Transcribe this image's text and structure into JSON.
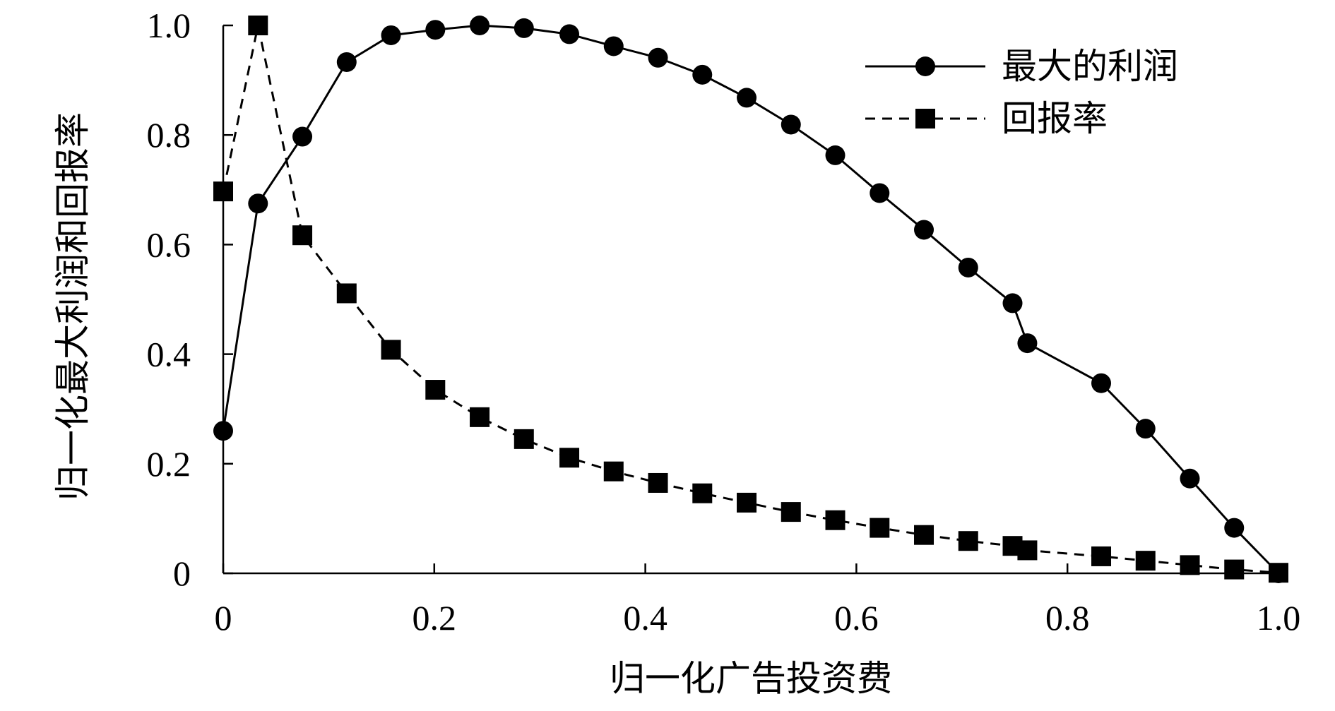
{
  "chart_data": {
    "type": "line",
    "xlabel": "归一化广告投资费",
    "ylabel": "归一化最大利润和回报率",
    "xlim": [
      0,
      1.0
    ],
    "ylim": [
      0,
      1.0
    ],
    "x_ticks": [
      "0",
      "0.2",
      "0.4",
      "0.6",
      "0.8",
      "1.0"
    ],
    "y_ticks": [
      "0",
      "0.2",
      "0.4",
      "0.6",
      "0.8",
      "1.0"
    ],
    "legend_position": "top-right",
    "series": [
      {
        "name": "最大的利润",
        "marker": "circle",
        "line_style": "solid",
        "color": "#000000",
        "x": [
          0,
          0.033,
          0.075,
          0.117,
          0.159,
          0.201,
          0.243,
          0.285,
          0.328,
          0.37,
          0.412,
          0.454,
          0.496,
          0.538,
          0.58,
          0.622,
          0.664,
          0.706,
          0.748,
          0.762,
          0.832,
          0.874,
          0.916,
          0.958,
          1.0
        ],
        "y": [
          0.26,
          0.675,
          0.797,
          0.933,
          0.982,
          0.992,
          1.0,
          0.995,
          0.984,
          0.962,
          0.941,
          0.91,
          0.868,
          0.819,
          0.763,
          0.694,
          0.627,
          0.558,
          0.493,
          0.42,
          0.347,
          0.264,
          0.173,
          0.083,
          0.0
        ]
      },
      {
        "name": "回报率",
        "marker": "square",
        "line_style": "dashed",
        "color": "#000000",
        "x": [
          0,
          0.033,
          0.075,
          0.117,
          0.159,
          0.201,
          0.243,
          0.285,
          0.328,
          0.37,
          0.412,
          0.454,
          0.496,
          0.538,
          0.58,
          0.622,
          0.664,
          0.706,
          0.748,
          0.762,
          0.832,
          0.874,
          0.916,
          0.958,
          1.0
        ],
        "y": [
          0.697,
          1.0,
          0.617,
          0.511,
          0.408,
          0.335,
          0.285,
          0.245,
          0.211,
          0.186,
          0.165,
          0.146,
          0.129,
          0.112,
          0.097,
          0.083,
          0.07,
          0.059,
          0.05,
          0.042,
          0.031,
          0.023,
          0.015,
          0.007,
          0.001
        ]
      }
    ]
  }
}
